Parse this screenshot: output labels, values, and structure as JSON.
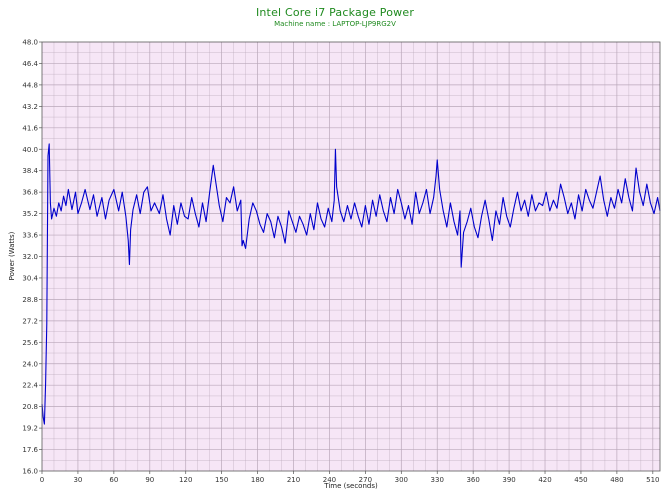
{
  "chart_data": {
    "type": "line",
    "title": "Intel Core i7 Package Power",
    "subtitle": "Machine name : LAPTOP-LJP9RG2V",
    "xlabel": "Time (seconds)",
    "ylabel": "Power (Watts)",
    "xlim": [
      0,
      516
    ],
    "ylim": [
      16.0,
      48.0
    ],
    "x_ticks": [
      "0",
      "30",
      "60",
      "90",
      "120",
      "150",
      "180",
      "210",
      "240",
      "270",
      "300",
      "330",
      "360",
      "390",
      "420",
      "450",
      "480",
      "510"
    ],
    "y_ticks": [
      "16.0",
      "17.6",
      "19.2",
      "20.8",
      "22.4",
      "24.0",
      "25.6",
      "27.2",
      "28.8",
      "30.4",
      "32.0",
      "33.6",
      "35.2",
      "36.8",
      "38.4",
      "40.0",
      "41.6",
      "43.2",
      "44.8",
      "46.4",
      "48.0"
    ],
    "grid": true,
    "colors": {
      "line": "#0000cc",
      "plot_bg": "#f6e6f6",
      "grid": "#b9a7b9",
      "title": "#1f8a1f"
    },
    "series": [
      {
        "x": [
          0,
          1,
          2,
          3,
          4,
          5,
          6,
          7,
          8,
          10,
          12,
          14,
          16,
          18,
          20,
          22,
          25,
          28,
          30,
          33,
          36,
          40,
          43,
          46,
          50,
          53,
          56,
          60,
          64,
          67,
          70,
          72,
          73,
          74,
          76,
          79,
          82,
          85,
          88,
          91,
          94,
          98,
          101,
          104,
          107,
          110,
          113,
          116,
          119,
          122,
          125,
          128,
          131,
          134,
          137,
          140,
          143,
          146,
          148,
          151,
          154,
          157,
          160,
          163,
          166,
          167,
          168,
          170,
          173,
          176,
          179,
          182,
          185,
          188,
          191,
          194,
          197,
          200,
          203,
          206,
          209,
          212,
          215,
          218,
          221,
          224,
          227,
          230,
          233,
          236,
          239,
          242,
          244,
          245,
          246,
          249,
          252,
          255,
          258,
          261,
          264,
          267,
          270,
          273,
          276,
          279,
          282,
          285,
          288,
          291,
          294,
          297,
          300,
          303,
          306,
          309,
          312,
          315,
          318,
          321,
          324,
          327,
          329,
          330,
          332,
          335,
          338,
          341,
          344,
          347,
          349,
          350,
          352,
          355,
          358,
          361,
          364,
          367,
          370,
          373,
          376,
          379,
          382,
          385,
          388,
          391,
          394,
          397,
          400,
          403,
          406,
          409,
          412,
          415,
          418,
          421,
          424,
          427,
          430,
          433,
          436,
          439,
          442,
          445,
          448,
          451,
          454,
          457,
          460,
          463,
          466,
          469,
          472,
          475,
          478,
          481,
          484,
          487,
          490,
          493,
          496,
          499,
          502,
          505,
          508,
          511,
          514,
          516
        ],
        "values": [
          21.0,
          20.0,
          19.5,
          22.5,
          27.0,
          39.5,
          40.4,
          36.0,
          34.8,
          35.6,
          35.0,
          36.0,
          35.4,
          36.5,
          35.8,
          37.0,
          35.5,
          36.8,
          35.2,
          36.0,
          37.0,
          35.5,
          36.6,
          35.0,
          36.4,
          34.8,
          36.2,
          37.0,
          35.4,
          36.8,
          35.0,
          33.2,
          31.4,
          34.0,
          35.5,
          36.6,
          35.2,
          36.8,
          37.2,
          35.4,
          36.0,
          35.2,
          36.6,
          34.8,
          33.6,
          35.8,
          34.4,
          36.0,
          35.0,
          34.8,
          36.4,
          35.2,
          34.2,
          36.0,
          34.6,
          36.8,
          38.8,
          37.0,
          35.8,
          34.6,
          36.4,
          36.0,
          37.2,
          35.4,
          36.2,
          32.8,
          33.2,
          32.6,
          34.8,
          36.0,
          35.4,
          34.4,
          33.8,
          35.2,
          34.6,
          33.4,
          35.0,
          34.2,
          33.0,
          35.4,
          34.6,
          33.8,
          35.0,
          34.4,
          33.6,
          35.2,
          34.0,
          36.0,
          34.8,
          34.2,
          35.6,
          34.6,
          36.2,
          40.0,
          37.2,
          35.4,
          34.6,
          35.8,
          34.8,
          36.0,
          35.0,
          34.2,
          35.8,
          34.4,
          36.2,
          35.0,
          36.6,
          35.4,
          34.6,
          36.4,
          35.2,
          37.0,
          36.0,
          34.8,
          35.8,
          34.4,
          36.8,
          35.2,
          36.0,
          37.0,
          35.2,
          36.4,
          38.0,
          39.2,
          37.0,
          35.4,
          34.2,
          36.0,
          34.6,
          33.6,
          35.4,
          31.2,
          33.8,
          34.6,
          35.6,
          34.2,
          33.4,
          35.0,
          36.2,
          34.8,
          33.2,
          35.4,
          34.4,
          36.4,
          35.0,
          34.2,
          35.6,
          36.8,
          35.4,
          36.2,
          35.0,
          36.6,
          35.4,
          36.0,
          35.8,
          36.8,
          35.4,
          36.2,
          35.6,
          37.4,
          36.4,
          35.2,
          36.0,
          34.8,
          36.6,
          35.4,
          37.0,
          36.2,
          35.6,
          36.8,
          38.0,
          36.2,
          35.0,
          36.4,
          35.6,
          37.0,
          36.0,
          37.8,
          36.4,
          35.4,
          38.6,
          36.8,
          35.8,
          37.4,
          36.0,
          35.2,
          36.4,
          35.4
        ]
      }
    ]
  }
}
